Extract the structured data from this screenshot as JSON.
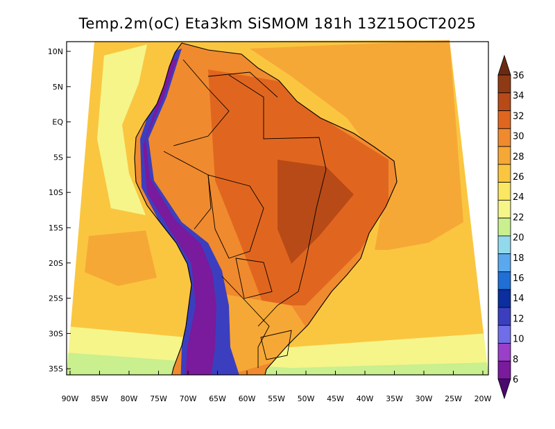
{
  "title": "Temp.2m(oC) Eta3km SiSMOM 181h 13Z15OCT2025",
  "lat_ticks": [
    "10N",
    "5N",
    "EQ",
    "5S",
    "10S",
    "15S",
    "20S",
    "25S",
    "30S",
    "35S"
  ],
  "lon_ticks": [
    "90W",
    "85W",
    "80W",
    "75W",
    "70W",
    "65W",
    "60W",
    "55W",
    "50W",
    "45W",
    "40W",
    "35W",
    "30W",
    "25W",
    "20W"
  ],
  "colorbar": {
    "labels": [
      "36",
      "34",
      "32",
      "30",
      "28",
      "26",
      "24",
      "22",
      "20",
      "18",
      "16",
      "14",
      "12",
      "10",
      "8",
      "6"
    ],
    "colors": [
      "#6a2a12",
      "#8f3a14",
      "#b84a17",
      "#e0661f",
      "#f08a2e",
      "#f6a836",
      "#fac640",
      "#fbe761",
      "#f5f58a",
      "#c9ef8e",
      "#93d9ec",
      "#5aa9ee",
      "#1f6fd6",
      "#0b2ea0",
      "#3b3fbf",
      "#6f6ee8",
      "#9a3fc9",
      "#7a1a9c",
      "#4b0a6e"
    ]
  },
  "fields": {
    "ocean_warm": "#f6a836",
    "ocean_mid": "#fac640",
    "ocean_cool": "#f5f58a",
    "ocean_cold": "#c9ef8e",
    "land_hot": "#e0661f",
    "land_warm": "#f08a2e",
    "andes_cold": "#7a1a9c",
    "andes_cool": "#3b3fbf"
  }
}
